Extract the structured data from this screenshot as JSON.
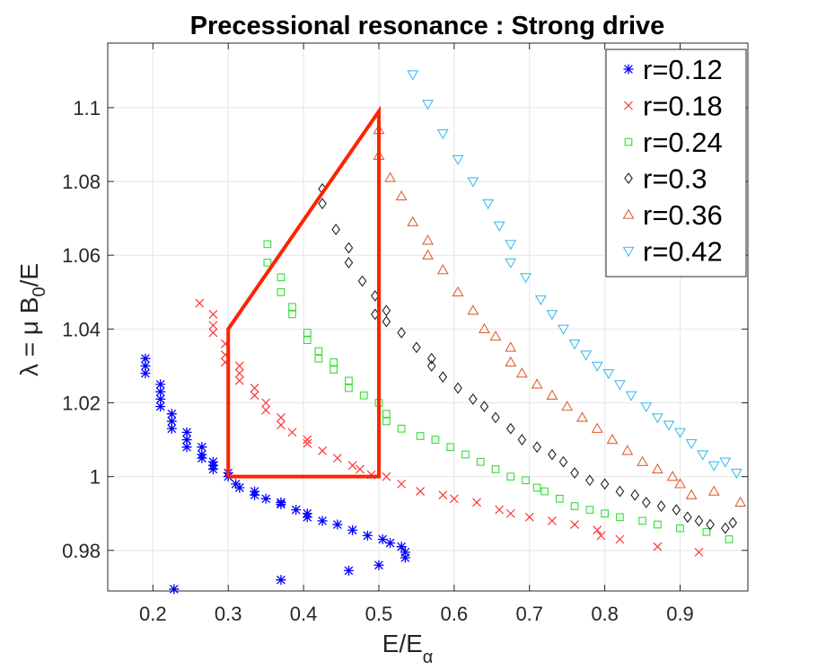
{
  "chart_data": {
    "type": "scatter",
    "title": "Precessional resonance : Strong drive",
    "xlabel": "E/E",
    "xlabel_subscript": "α",
    "ylabel": "λ = μ B",
    "ylabel_subscript": "0",
    "ylabel_suffix": "/E",
    "xlim": [
      0.14,
      0.99
    ],
    "ylim": [
      0.969,
      1.1175
    ],
    "xticks": [
      0.2,
      0.3,
      0.4,
      0.5,
      0.6,
      0.7,
      0.8,
      0.9
    ],
    "xtick_labels": [
      "0.2",
      "0.3",
      "0.4",
      "0.5",
      "0.6",
      "0.7",
      "0.8",
      "0.9"
    ],
    "yticks": [
      0.98,
      1.0,
      1.02,
      1.04,
      1.06,
      1.08,
      1.1
    ],
    "ytick_labels": [
      "0.98",
      "1",
      "1.02",
      "1.04",
      "1.06",
      "1.08",
      "1.1"
    ],
    "grid": true,
    "legend_position": "top-right",
    "series": [
      {
        "name": "r=0.12",
        "marker": "asterisk",
        "color": "#0000ff",
        "points": [
          [
            0.19,
            1.032
          ],
          [
            0.19,
            1.03
          ],
          [
            0.19,
            1.028
          ],
          [
            0.21,
            1.025
          ],
          [
            0.21,
            1.023
          ],
          [
            0.21,
            1.021
          ],
          [
            0.21,
            1.019
          ],
          [
            0.225,
            1.017
          ],
          [
            0.225,
            1.015
          ],
          [
            0.225,
            1.013
          ],
          [
            0.245,
            1.012
          ],
          [
            0.245,
            1.01
          ],
          [
            0.245,
            1.008
          ],
          [
            0.265,
            1.008
          ],
          [
            0.265,
            1.006
          ],
          [
            0.265,
            1.005
          ],
          [
            0.28,
            1.004
          ],
          [
            0.28,
            1.003
          ],
          [
            0.28,
            1.002
          ],
          [
            0.3,
            1.001
          ],
          [
            0.3,
            1.0
          ],
          [
            0.31,
            0.998
          ],
          [
            0.315,
            0.997
          ],
          [
            0.335,
            0.996
          ],
          [
            0.335,
            0.995
          ],
          [
            0.35,
            0.994
          ],
          [
            0.37,
            0.993
          ],
          [
            0.37,
            0.9925
          ],
          [
            0.39,
            0.991
          ],
          [
            0.405,
            0.99
          ],
          [
            0.405,
            0.989
          ],
          [
            0.425,
            0.988
          ],
          [
            0.445,
            0.987
          ],
          [
            0.465,
            0.9855
          ],
          [
            0.485,
            0.984
          ],
          [
            0.505,
            0.983
          ],
          [
            0.515,
            0.982
          ],
          [
            0.53,
            0.981
          ],
          [
            0.535,
            0.9795
          ],
          [
            0.535,
            0.978
          ],
          [
            0.5,
            0.976
          ],
          [
            0.46,
            0.9745
          ],
          [
            0.37,
            0.972
          ],
          [
            0.228,
            0.9695
          ]
        ]
      },
      {
        "name": "r=0.18",
        "marker": "x",
        "color": "#ff3333",
        "points": [
          [
            0.262,
            1.047
          ],
          [
            0.28,
            1.044
          ],
          [
            0.28,
            1.041
          ],
          [
            0.28,
            1.039
          ],
          [
            0.296,
            1.036
          ],
          [
            0.296,
            1.033
          ],
          [
            0.296,
            1.031
          ],
          [
            0.315,
            1.03
          ],
          [
            0.315,
            1.028
          ],
          [
            0.315,
            1.026
          ],
          [
            0.335,
            1.024
          ],
          [
            0.335,
            1.022
          ],
          [
            0.35,
            1.02
          ],
          [
            0.35,
            1.018
          ],
          [
            0.37,
            1.016
          ],
          [
            0.37,
            1.014
          ],
          [
            0.385,
            1.012
          ],
          [
            0.405,
            1.01
          ],
          [
            0.405,
            1.009
          ],
          [
            0.425,
            1.007
          ],
          [
            0.445,
            1.005
          ],
          [
            0.465,
            1.003
          ],
          [
            0.475,
            1.002
          ],
          [
            0.49,
            1.0005
          ],
          [
            0.51,
            1.0
          ],
          [
            0.53,
            0.998
          ],
          [
            0.555,
            0.996
          ],
          [
            0.585,
            0.995
          ],
          [
            0.6,
            0.994
          ],
          [
            0.63,
            0.993
          ],
          [
            0.66,
            0.991
          ],
          [
            0.675,
            0.99
          ],
          [
            0.7,
            0.989
          ],
          [
            0.73,
            0.988
          ],
          [
            0.76,
            0.987
          ],
          [
            0.79,
            0.9855
          ],
          [
            0.795,
            0.984
          ],
          [
            0.82,
            0.983
          ],
          [
            0.87,
            0.981
          ],
          [
            0.925,
            0.9795
          ]
        ]
      },
      {
        "name": "r=0.24",
        "marker": "square",
        "color": "#33dd33",
        "points": [
          [
            0.352,
            1.063
          ],
          [
            0.352,
            1.058
          ],
          [
            0.37,
            1.054
          ],
          [
            0.37,
            1.05
          ],
          [
            0.385,
            1.046
          ],
          [
            0.385,
            1.044
          ],
          [
            0.405,
            1.039
          ],
          [
            0.405,
            1.037
          ],
          [
            0.42,
            1.034
          ],
          [
            0.42,
            1.032
          ],
          [
            0.44,
            1.031
          ],
          [
            0.44,
            1.029
          ],
          [
            0.46,
            1.026
          ],
          [
            0.46,
            1.024
          ],
          [
            0.48,
            1.022
          ],
          [
            0.5,
            1.02
          ],
          [
            0.51,
            1.017
          ],
          [
            0.51,
            1.015
          ],
          [
            0.53,
            1.013
          ],
          [
            0.555,
            1.011
          ],
          [
            0.575,
            1.01
          ],
          [
            0.595,
            1.008
          ],
          [
            0.615,
            1.006
          ],
          [
            0.635,
            1.004
          ],
          [
            0.655,
            1.002
          ],
          [
            0.675,
            1.0
          ],
          [
            0.695,
            0.999
          ],
          [
            0.71,
            0.997
          ],
          [
            0.72,
            0.996
          ],
          [
            0.74,
            0.994
          ],
          [
            0.76,
            0.992
          ],
          [
            0.78,
            0.991
          ],
          [
            0.8,
            0.99
          ],
          [
            0.82,
            0.989
          ],
          [
            0.85,
            0.988
          ],
          [
            0.87,
            0.987
          ],
          [
            0.9,
            0.986
          ],
          [
            0.935,
            0.985
          ],
          [
            0.965,
            0.983
          ]
        ]
      },
      {
        "name": "r=0.3",
        "marker": "diamond",
        "color": "#222222",
        "points": [
          [
            0.425,
            1.078
          ],
          [
            0.425,
            1.074
          ],
          [
            0.443,
            1.067
          ],
          [
            0.46,
            1.062
          ],
          [
            0.46,
            1.058
          ],
          [
            0.478,
            1.053
          ],
          [
            0.495,
            1.049
          ],
          [
            0.495,
            1.044
          ],
          [
            0.51,
            1.045
          ],
          [
            0.51,
            1.042
          ],
          [
            0.53,
            1.039
          ],
          [
            0.55,
            1.035
          ],
          [
            0.57,
            1.032
          ],
          [
            0.57,
            1.03
          ],
          [
            0.585,
            1.027
          ],
          [
            0.605,
            1.024
          ],
          [
            0.625,
            1.021
          ],
          [
            0.64,
            1.019
          ],
          [
            0.655,
            1.016
          ],
          [
            0.675,
            1.013
          ],
          [
            0.69,
            1.01
          ],
          [
            0.71,
            1.008
          ],
          [
            0.73,
            1.006
          ],
          [
            0.745,
            1.004
          ],
          [
            0.76,
            1.001
          ],
          [
            0.78,
            0.999
          ],
          [
            0.8,
            0.998
          ],
          [
            0.82,
            0.996
          ],
          [
            0.84,
            0.995
          ],
          [
            0.855,
            0.993
          ],
          [
            0.875,
            0.992
          ],
          [
            0.895,
            0.991
          ],
          [
            0.91,
            0.989
          ],
          [
            0.925,
            0.988
          ],
          [
            0.94,
            0.987
          ],
          [
            0.96,
            0.986
          ],
          [
            0.97,
            0.9875
          ]
        ]
      },
      {
        "name": "r=0.36",
        "marker": "triangle-up",
        "color": "#e06030",
        "points": [
          [
            0.5,
            1.094
          ],
          [
            0.5,
            1.087
          ],
          [
            0.515,
            1.081
          ],
          [
            0.53,
            1.076
          ],
          [
            0.545,
            1.069
          ],
          [
            0.565,
            1.064
          ],
          [
            0.565,
            1.06
          ],
          [
            0.585,
            1.056
          ],
          [
            0.605,
            1.05
          ],
          [
            0.625,
            1.045
          ],
          [
            0.64,
            1.04
          ],
          [
            0.655,
            1.038
          ],
          [
            0.675,
            1.035
          ],
          [
            0.675,
            1.031
          ],
          [
            0.69,
            1.028
          ],
          [
            0.71,
            1.025
          ],
          [
            0.73,
            1.022
          ],
          [
            0.75,
            1.019
          ],
          [
            0.77,
            1.016
          ],
          [
            0.79,
            1.013
          ],
          [
            0.81,
            1.01
          ],
          [
            0.83,
            1.007
          ],
          [
            0.85,
            1.004
          ],
          [
            0.87,
            1.002
          ],
          [
            0.89,
            1.0
          ],
          [
            0.9,
            0.998
          ],
          [
            0.915,
            0.995
          ],
          [
            0.945,
            0.996
          ],
          [
            0.98,
            0.993
          ]
        ]
      },
      {
        "name": "r=0.42",
        "marker": "triangle-down",
        "color": "#44bbee",
        "points": [
          [
            0.545,
            1.109
          ],
          [
            0.565,
            1.101
          ],
          [
            0.585,
            1.093
          ],
          [
            0.605,
            1.086
          ],
          [
            0.625,
            1.08
          ],
          [
            0.645,
            1.074
          ],
          [
            0.66,
            1.068
          ],
          [
            0.675,
            1.063
          ],
          [
            0.675,
            1.058
          ],
          [
            0.695,
            1.054
          ],
          [
            0.715,
            1.048
          ],
          [
            0.73,
            1.044
          ],
          [
            0.745,
            1.04
          ],
          [
            0.76,
            1.036
          ],
          [
            0.775,
            1.033
          ],
          [
            0.79,
            1.03
          ],
          [
            0.805,
            1.028
          ],
          [
            0.82,
            1.025
          ],
          [
            0.835,
            1.022
          ],
          [
            0.855,
            1.019
          ],
          [
            0.87,
            1.016
          ],
          [
            0.885,
            1.014
          ],
          [
            0.9,
            1.012
          ],
          [
            0.915,
            1.009
          ],
          [
            0.93,
            1.006
          ],
          [
            0.945,
            1.003
          ],
          [
            0.96,
            1.004
          ],
          [
            0.975,
            1.001
          ]
        ]
      }
    ],
    "annotation": {
      "name": "resonance-region",
      "type": "polygon",
      "color": "#ff2200",
      "vertices": [
        [
          0.3,
          1.0
        ],
        [
          0.5,
          1.0
        ],
        [
          0.5,
          1.099
        ],
        [
          0.3,
          1.04
        ],
        [
          0.3,
          1.0
        ]
      ]
    }
  }
}
